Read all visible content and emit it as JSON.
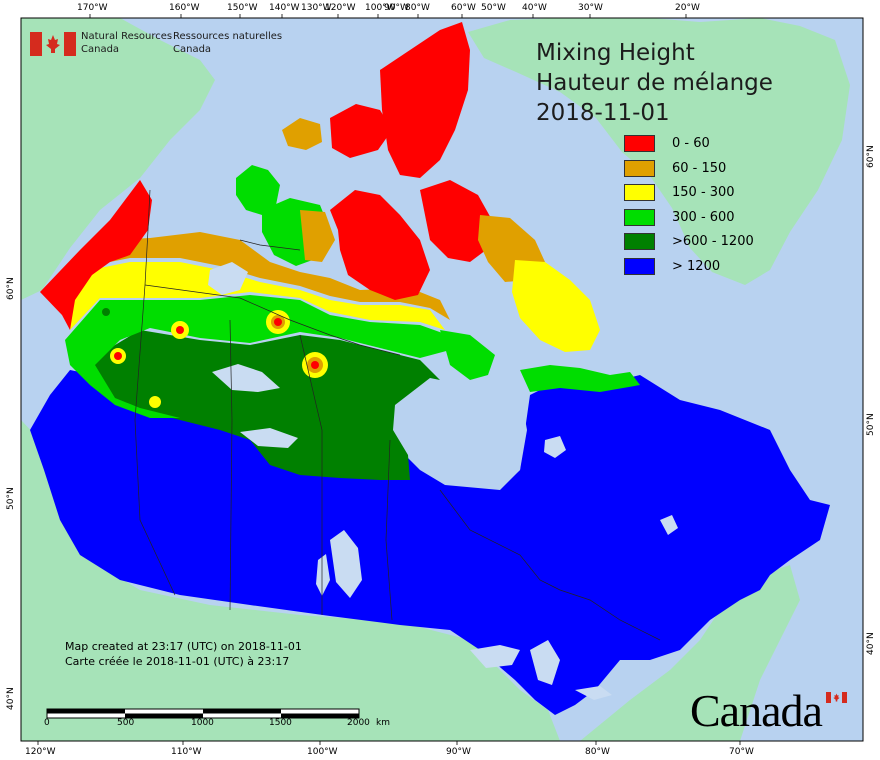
{
  "agency": {
    "name_en_line1": "Natural Resources",
    "name_en_line2": "Canada",
    "name_fr_line1": "Ressources naturelles",
    "name_fr_line2": "Canada"
  },
  "legend": {
    "title_en": "Mixing Height",
    "title_fr": "Hauteur de mélange",
    "date": "2018-11-01",
    "items": [
      {
        "label": "0 - 60",
        "color": "#ff0000"
      },
      {
        "label": "60 - 150",
        "color": "#e0a000"
      },
      {
        "label": "150 - 300",
        "color": "#ffff00"
      },
      {
        "label": "300 - 600",
        "color": "#00dd00"
      },
      {
        "label": ">600 - 1200",
        "color": "#008000"
      },
      {
        "label": "> 1200",
        "color": "#0000ff"
      }
    ]
  },
  "graticule": {
    "top": [
      "170°W",
      "160°W",
      "150°W",
      "140°W",
      "130°W",
      "120°W",
      "100°W",
      "90°W",
      "80°W",
      "60°W",
      "50°W",
      "40°W",
      "30°W",
      "20°W"
    ],
    "bottom": [
      "120°W",
      "110°W",
      "100°W",
      "90°W",
      "80°W",
      "70°W"
    ],
    "left": [
      "60°N",
      "50°N",
      "40°N"
    ],
    "right": [
      "60°N",
      "50°N",
      "40°N"
    ]
  },
  "footer": {
    "created_en": "Map created at 23:17 (UTC) on 2018-11-01",
    "created_fr": "Carte créée le 2018-11-01 (UTC) à 23:17"
  },
  "scale": {
    "labels": [
      "0",
      "500",
      "1000",
      "1500",
      "2000",
      "km"
    ]
  },
  "wordmark": "Canada",
  "colors": {
    "ocean": "#b8d2f0",
    "land_other": "#a6e3b8",
    "lake": "#c9dcf2"
  }
}
